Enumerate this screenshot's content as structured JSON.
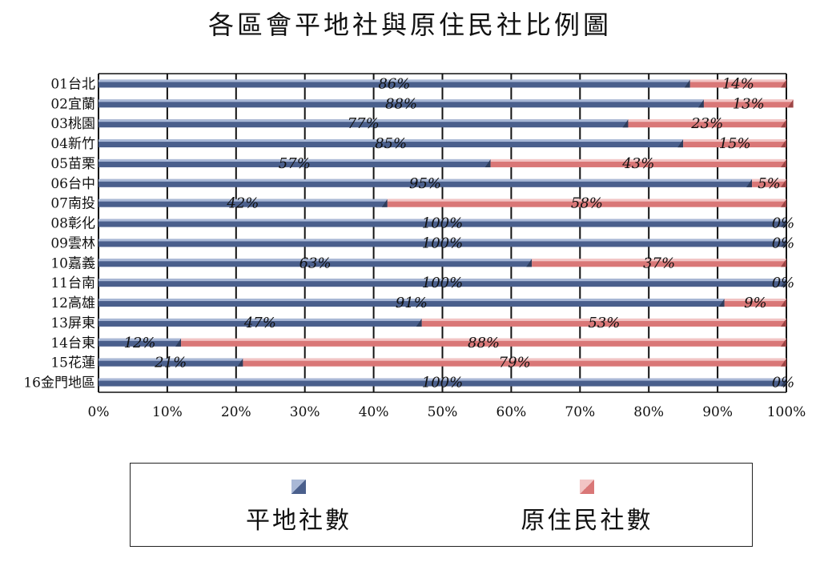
{
  "chart_data": {
    "type": "bar",
    "orientation": "horizontal",
    "stacked": "percent",
    "title": "各區會平地社與原住民社比例圖",
    "categories": [
      "01台北",
      "02宜蘭",
      "03桃園",
      "04新竹",
      "05苗栗",
      "06台中",
      "07南投",
      "08彰化",
      "09雲林",
      "10嘉義",
      "11台南",
      "12高雄",
      "13屏東",
      "14台東",
      "15花蓮",
      "16金門地區"
    ],
    "series": [
      {
        "name": "平地社數",
        "color": "#4a5f8c",
        "values": [
          86,
          88,
          77,
          85,
          57,
          95,
          42,
          100,
          100,
          63,
          100,
          91,
          47,
          12,
          21,
          100
        ],
        "labels": [
          "86%",
          "88%",
          "77%",
          "85%",
          "57%",
          "95%",
          "42%",
          "100%",
          "100%",
          "63%",
          "100%",
          "91%",
          "47%",
          "12%",
          "21%",
          "100%"
        ]
      },
      {
        "name": "原住民社數",
        "color": "#d97777",
        "values": [
          14,
          13,
          23,
          15,
          43,
          5,
          58,
          0,
          0,
          37,
          0,
          9,
          53,
          88,
          79,
          0
        ],
        "labels": [
          "14%",
          "13%",
          "23%",
          "15%",
          "43%",
          "5%",
          "58%",
          "0%",
          "0%",
          "37%",
          "0%",
          "9%",
          "53%",
          "88%",
          "79%",
          "0%"
        ]
      }
    ],
    "xticks": [
      "0%",
      "10%",
      "20%",
      "30%",
      "40%",
      "50%",
      "60%",
      "70%",
      "80%",
      "90%",
      "100%"
    ],
    "xlim": [
      0,
      100
    ],
    "grid": true,
    "legend_position": "bottom"
  }
}
